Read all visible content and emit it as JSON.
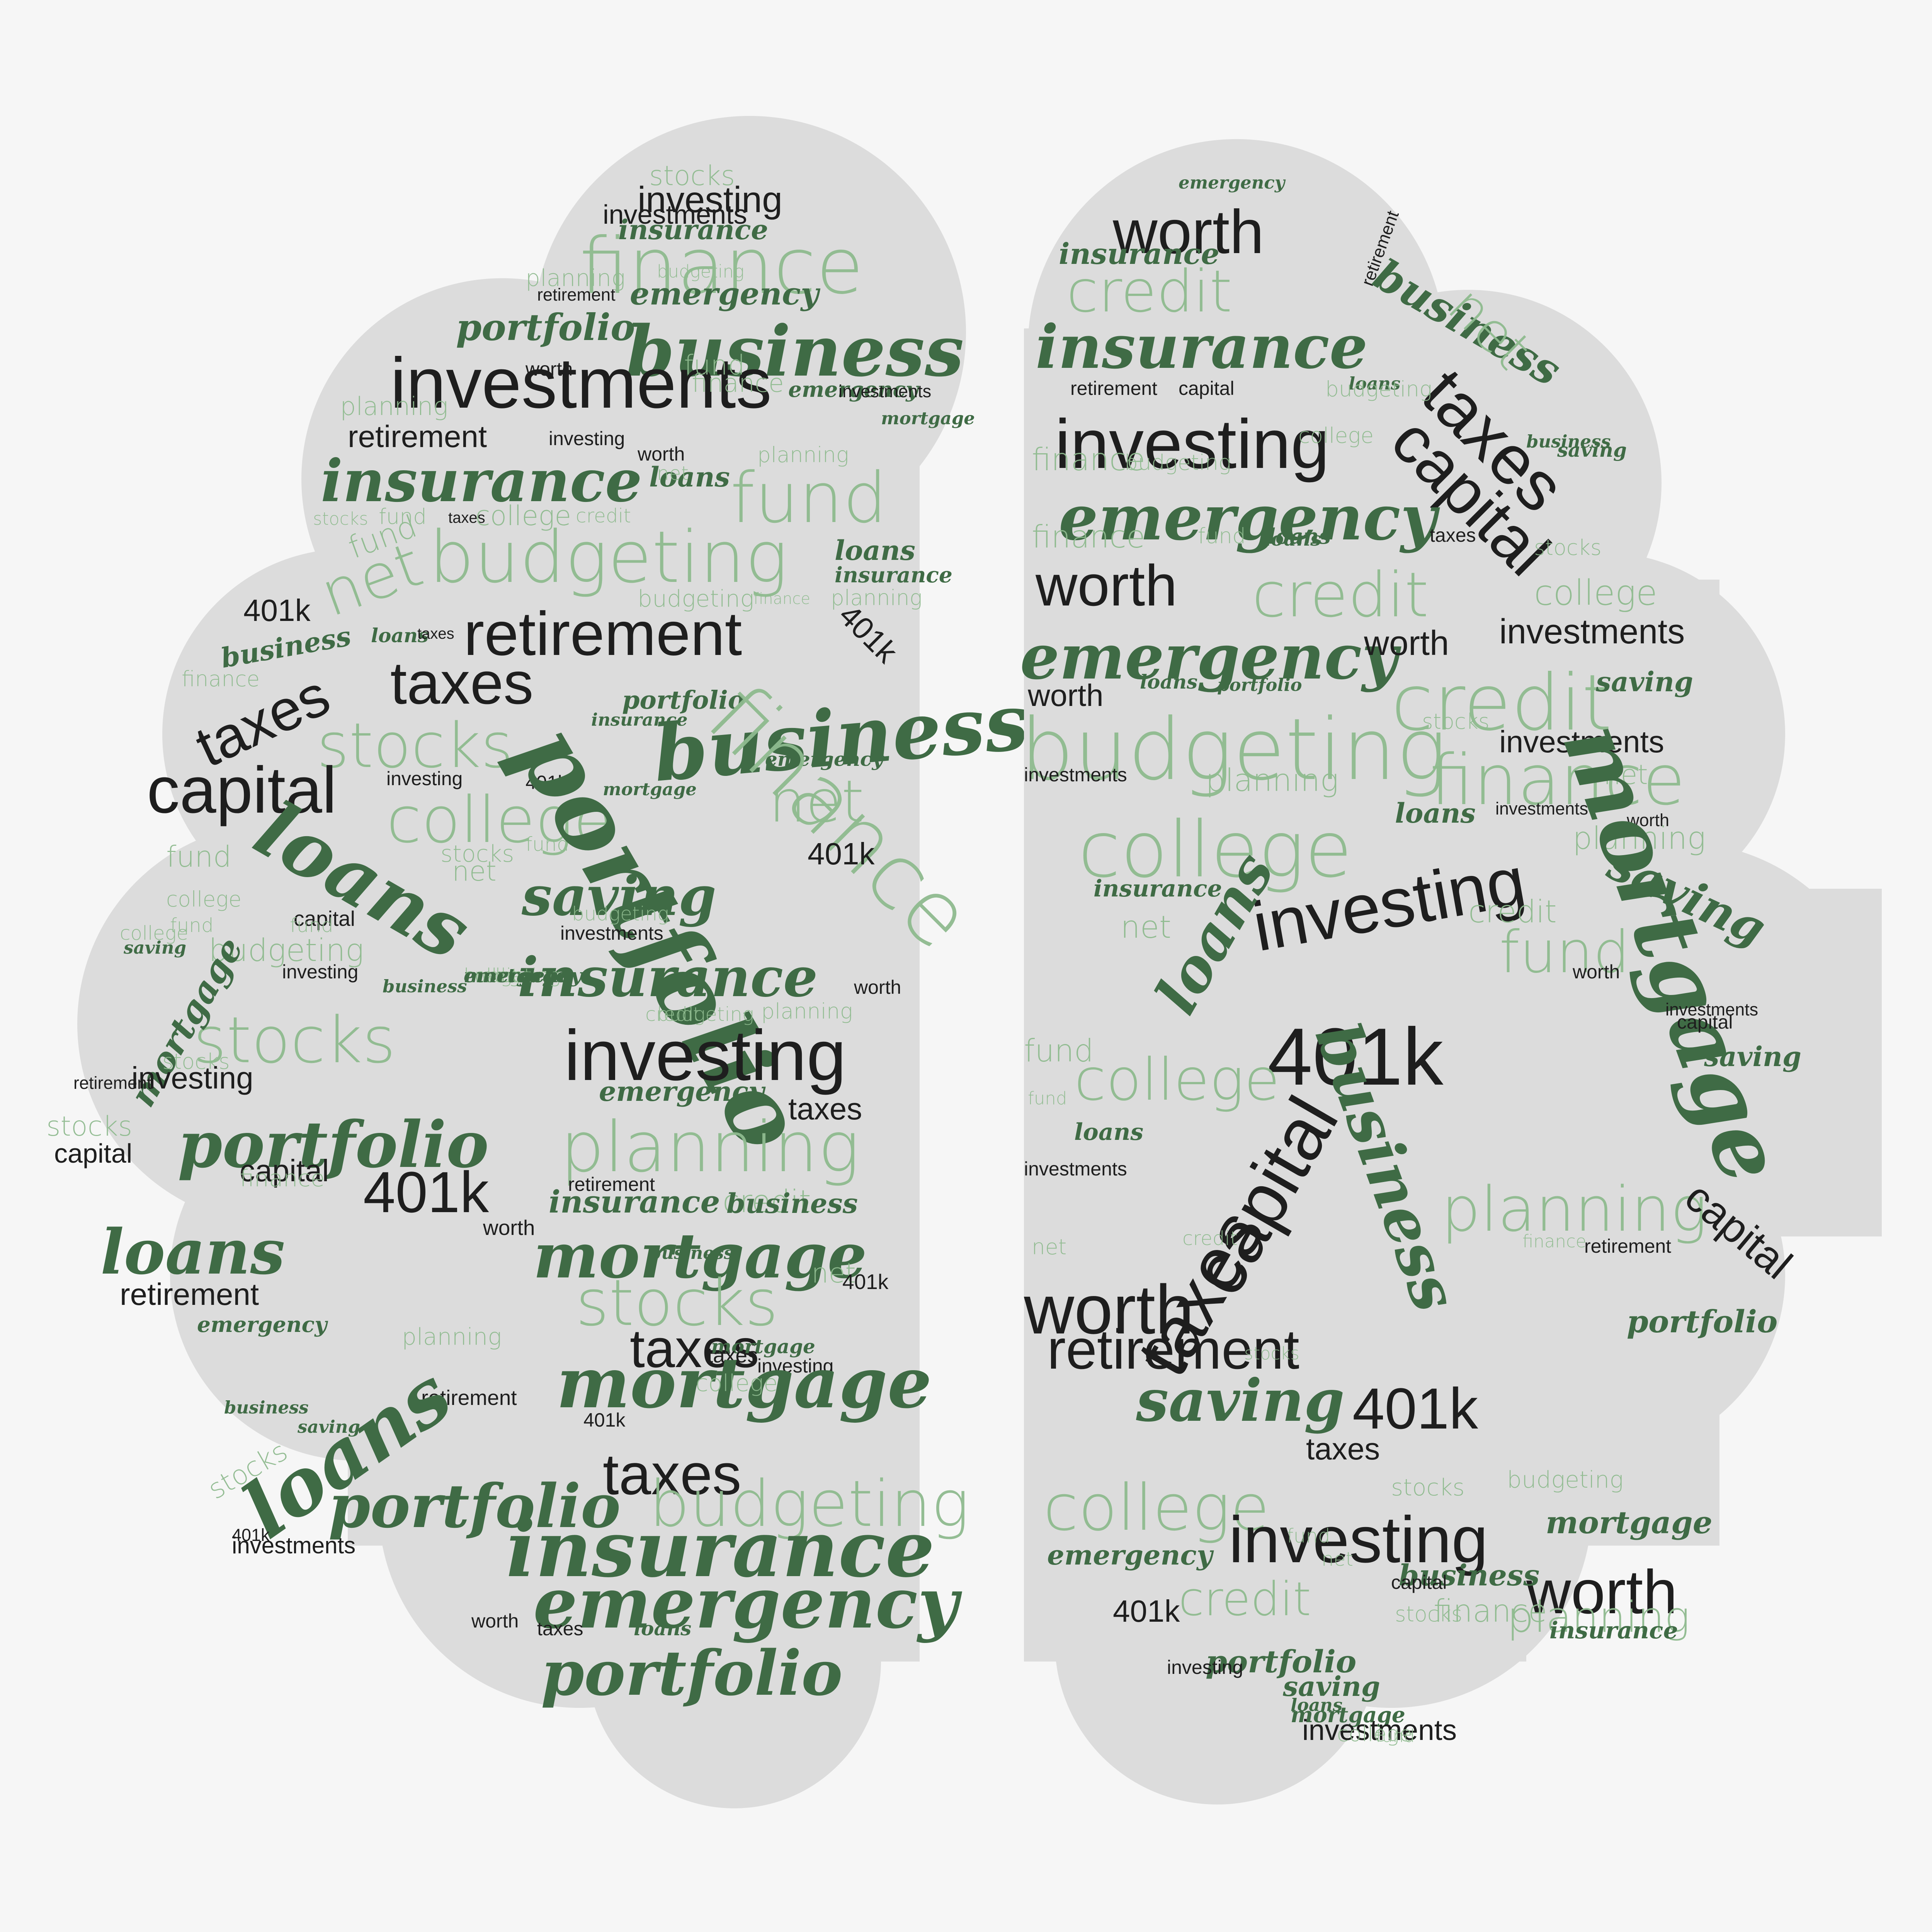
{
  "colors": {
    "background": "#f6f6f6",
    "lobe_fill": "#dcdcdc",
    "dark_text": "#1e1e1e",
    "light_green_text": "#8fbb8f",
    "dark_green_text": "#3f6b45"
  },
  "left_words": [
    {
      "t": "stocks",
      "s": "light"
    },
    {
      "t": "investing",
      "s": "dark"
    },
    {
      "t": "insurance",
      "s": "green"
    },
    {
      "t": "investments",
      "s": "dark"
    },
    {
      "t": "finance",
      "s": "light"
    },
    {
      "t": "planning",
      "s": "light"
    },
    {
      "t": "retirement",
      "s": "dark"
    },
    {
      "t": "emergency",
      "s": "green"
    },
    {
      "t": "budgeting",
      "s": "light"
    },
    {
      "t": "portfolio",
      "s": "green"
    },
    {
      "t": "business",
      "s": "green"
    },
    {
      "t": "investments",
      "s": "dark"
    },
    {
      "t": "fund",
      "s": "light"
    },
    {
      "t": "worth",
      "s": "dark"
    },
    {
      "t": "finance",
      "s": "light"
    },
    {
      "t": "emergency",
      "s": "green"
    },
    {
      "t": "planning",
      "s": "light"
    },
    {
      "t": "investments",
      "s": "dark"
    },
    {
      "t": "mortgage",
      "s": "green"
    },
    {
      "t": "retirement",
      "s": "dark"
    },
    {
      "t": "investing",
      "s": "dark"
    },
    {
      "t": "worth",
      "s": "dark"
    },
    {
      "t": "insurance",
      "s": "green"
    },
    {
      "t": "loans",
      "s": "green"
    },
    {
      "t": "net",
      "s": "light"
    },
    {
      "t": "planning",
      "s": "light"
    },
    {
      "t": "fund",
      "s": "light"
    },
    {
      "t": "stocks",
      "s": "light"
    },
    {
      "t": "fund",
      "s": "light"
    },
    {
      "t": "taxes",
      "s": "dark"
    },
    {
      "t": "college",
      "s": "light"
    },
    {
      "t": "credit",
      "s": "light"
    },
    {
      "t": "fund",
      "s": "light"
    },
    {
      "t": "budgeting",
      "s": "light"
    },
    {
      "t": "net",
      "s": "light"
    },
    {
      "t": "loans",
      "s": "green"
    },
    {
      "t": "insurance",
      "s": "green"
    },
    {
      "t": "planning",
      "s": "light"
    },
    {
      "t": "budgeting",
      "s": "light"
    },
    {
      "t": "finance",
      "s": "light"
    },
    {
      "t": "401k",
      "s": "dark"
    },
    {
      "t": "retirement",
      "s": "dark"
    },
    {
      "t": "business",
      "s": "green"
    },
    {
      "t": "loans",
      "s": "green"
    },
    {
      "t": "taxes",
      "s": "dark"
    },
    {
      "t": "taxes",
      "s": "dark"
    },
    {
      "t": "taxes",
      "s": "dark"
    },
    {
      "t": "portfolio",
      "s": "green"
    },
    {
      "t": "401k",
      "s": "dark"
    },
    {
      "t": "finance",
      "s": "light"
    },
    {
      "t": "insurance",
      "s": "green"
    },
    {
      "t": "stocks",
      "s": "light"
    },
    {
      "t": "capital",
      "s": "dark"
    },
    {
      "t": "business",
      "s": "green"
    },
    {
      "t": "emergency",
      "s": "green"
    },
    {
      "t": "investing",
      "s": "dark"
    },
    {
      "t": "401k",
      "s": "dark"
    },
    {
      "t": "mortgage",
      "s": "green"
    },
    {
      "t": "net",
      "s": "light"
    },
    {
      "t": "college",
      "s": "light"
    },
    {
      "t": "fund",
      "s": "light"
    },
    {
      "t": "stocks",
      "s": "light"
    },
    {
      "t": "fund",
      "s": "light"
    },
    {
      "t": "finance",
      "s": "light"
    },
    {
      "t": "401k",
      "s": "dark"
    },
    {
      "t": "loans",
      "s": "green"
    },
    {
      "t": "net",
      "s": "light"
    },
    {
      "t": "saving",
      "s": "green"
    },
    {
      "t": "portfolio",
      "s": "green"
    },
    {
      "t": "college",
      "s": "light"
    },
    {
      "t": "budgeting",
      "s": "light"
    },
    {
      "t": "capital",
      "s": "dark"
    },
    {
      "t": "fund",
      "s": "light"
    },
    {
      "t": "fund",
      "s": "light"
    },
    {
      "t": "college",
      "s": "light"
    },
    {
      "t": "investments",
      "s": "dark"
    },
    {
      "t": "insurance",
      "s": "green"
    },
    {
      "t": "saving",
      "s": "green"
    },
    {
      "t": "budgeting",
      "s": "light"
    },
    {
      "t": "investing",
      "s": "dark"
    },
    {
      "t": "business",
      "s": "green"
    },
    {
      "t": "worth",
      "s": "dark"
    },
    {
      "t": "stocks",
      "s": "light"
    },
    {
      "t": "credit",
      "s": "light"
    },
    {
      "t": "budgeting",
      "s": "light"
    },
    {
      "t": "planning",
      "s": "light"
    },
    {
      "t": "investing",
      "s": "dark"
    },
    {
      "t": "mortgage",
      "s": "green"
    },
    {
      "t": "stocks",
      "s": "light"
    },
    {
      "t": "retirement",
      "s": "dark"
    },
    {
      "t": "investing",
      "s": "dark"
    },
    {
      "t": "emergency",
      "s": "green"
    },
    {
      "t": "taxes",
      "s": "dark"
    },
    {
      "t": "stocks",
      "s": "light"
    },
    {
      "t": "portfolio",
      "s": "green"
    },
    {
      "t": "planning",
      "s": "light"
    },
    {
      "t": "capital",
      "s": "dark"
    },
    {
      "t": "capital",
      "s": "dark"
    },
    {
      "t": "finance",
      "s": "light"
    },
    {
      "t": "401k",
      "s": "dark"
    },
    {
      "t": "insurance",
      "s": "green"
    },
    {
      "t": "credit",
      "s": "light"
    },
    {
      "t": "retirement",
      "s": "dark"
    },
    {
      "t": "business",
      "s": "green"
    },
    {
      "t": "worth",
      "s": "dark"
    },
    {
      "t": "mortgage",
      "s": "green"
    },
    {
      "t": "loans",
      "s": "green"
    },
    {
      "t": "business",
      "s": "green"
    },
    {
      "t": "net",
      "s": "light"
    },
    {
      "t": "retirement",
      "s": "dark"
    },
    {
      "t": "stocks",
      "s": "light"
    },
    {
      "t": "taxes",
      "s": "dark"
    },
    {
      "t": "401k",
      "s": "dark"
    },
    {
      "t": "emergency",
      "s": "green"
    },
    {
      "t": "planning",
      "s": "light"
    },
    {
      "t": "mortgage",
      "s": "green"
    },
    {
      "t": "taxes",
      "s": "dark"
    },
    {
      "t": "investing",
      "s": "dark"
    },
    {
      "t": "mortgage",
      "s": "green"
    },
    {
      "t": "college",
      "s": "light"
    },
    {
      "t": "retirement",
      "s": "dark"
    },
    {
      "t": "business",
      "s": "green"
    },
    {
      "t": "saving",
      "s": "green"
    },
    {
      "t": "401k",
      "s": "dark"
    },
    {
      "t": "loans",
      "s": "green"
    },
    {
      "t": "taxes",
      "s": "dark"
    },
    {
      "t": "stocks",
      "s": "light"
    },
    {
      "t": "portfolio",
      "s": "green"
    },
    {
      "t": "budgeting",
      "s": "light"
    },
    {
      "t": "401k",
      "s": "dark"
    },
    {
      "t": "insurance",
      "s": "green"
    },
    {
      "t": "investments",
      "s": "dark"
    },
    {
      "t": "emergency",
      "s": "green"
    },
    {
      "t": "worth",
      "s": "dark"
    },
    {
      "t": "taxes",
      "s": "dark"
    },
    {
      "t": "loans",
      "s": "green"
    },
    {
      "t": "portfolio",
      "s": "green"
    },
    {
      "t": "college",
      "s": "light"
    },
    {
      "t": "emergency",
      "s": "green"
    },
    {
      "t": "budgeting",
      "s": "light"
    },
    {
      "t": "mortgage",
      "s": "green"
    }
  ],
  "right_words": [
    {
      "t": "emergency",
      "s": "green"
    },
    {
      "t": "worth",
      "s": "dark"
    },
    {
      "t": "insurance",
      "s": "green"
    },
    {
      "t": "credit",
      "s": "light"
    },
    {
      "t": "retirement",
      "s": "dark"
    },
    {
      "t": "business",
      "s": "green"
    },
    {
      "t": "insurance",
      "s": "green"
    },
    {
      "t": "net",
      "s": "light"
    },
    {
      "t": "taxes",
      "s": "dark"
    },
    {
      "t": "investing",
      "s": "dark"
    },
    {
      "t": "capital",
      "s": "dark"
    },
    {
      "t": "retirement",
      "s": "dark"
    },
    {
      "t": "capital",
      "s": "dark"
    },
    {
      "t": "loans",
      "s": "green"
    },
    {
      "t": "budgeting",
      "s": "light"
    },
    {
      "t": "finance",
      "s": "light"
    },
    {
      "t": "emergency",
      "s": "green"
    },
    {
      "t": "budgeting",
      "s": "light"
    },
    {
      "t": "college",
      "s": "light"
    },
    {
      "t": "loans",
      "s": "green"
    },
    {
      "t": "business",
      "s": "green"
    },
    {
      "t": "saving",
      "s": "green"
    },
    {
      "t": "finance",
      "s": "light"
    },
    {
      "t": "fund",
      "s": "light"
    },
    {
      "t": "loans",
      "s": "green"
    },
    {
      "t": "taxes",
      "s": "dark"
    },
    {
      "t": "stocks",
      "s": "light"
    },
    {
      "t": "worth",
      "s": "dark"
    },
    {
      "t": "credit",
      "s": "light"
    },
    {
      "t": "college",
      "s": "light"
    },
    {
      "t": "emergency",
      "s": "green"
    },
    {
      "t": "worth",
      "s": "dark"
    },
    {
      "t": "investments",
      "s": "dark"
    },
    {
      "t": "credit",
      "s": "light"
    },
    {
      "t": "saving",
      "s": "green"
    },
    {
      "t": "portfolio",
      "s": "green"
    },
    {
      "t": "loans",
      "s": "green"
    },
    {
      "t": "worth",
      "s": "dark"
    },
    {
      "t": "budgeting",
      "s": "light"
    },
    {
      "t": "stocks",
      "s": "light"
    },
    {
      "t": "investments",
      "s": "dark"
    },
    {
      "t": "finance",
      "s": "light"
    },
    {
      "t": "net",
      "s": "light"
    },
    {
      "t": "investments",
      "s": "dark"
    },
    {
      "t": "planning",
      "s": "light"
    },
    {
      "t": "college",
      "s": "light"
    },
    {
      "t": "loans",
      "s": "green"
    },
    {
      "t": "investments",
      "s": "dark"
    },
    {
      "t": "worth",
      "s": "dark"
    },
    {
      "t": "planning",
      "s": "light"
    },
    {
      "t": "insurance",
      "s": "green"
    },
    {
      "t": "investing",
      "s": "dark"
    },
    {
      "t": "saving",
      "s": "green"
    },
    {
      "t": "credit",
      "s": "light"
    },
    {
      "t": "net",
      "s": "light"
    },
    {
      "t": "loans",
      "s": "green"
    },
    {
      "t": "mortgage",
      "s": "green"
    },
    {
      "t": "fund",
      "s": "light"
    },
    {
      "t": "worth",
      "s": "dark"
    },
    {
      "t": "401k",
      "s": "dark"
    },
    {
      "t": "investments",
      "s": "dark"
    },
    {
      "t": "capital",
      "s": "dark"
    },
    {
      "t": "saving",
      "s": "green"
    },
    {
      "t": "fund",
      "s": "light"
    },
    {
      "t": "college",
      "s": "light"
    },
    {
      "t": "loans",
      "s": "green"
    },
    {
      "t": "capital",
      "s": "dark"
    },
    {
      "t": "fund",
      "s": "light"
    },
    {
      "t": "business",
      "s": "green"
    },
    {
      "t": "investments",
      "s": "dark"
    },
    {
      "t": "taxes",
      "s": "dark"
    },
    {
      "t": "net",
      "s": "light"
    },
    {
      "t": "planning",
      "s": "light"
    },
    {
      "t": "capital",
      "s": "dark"
    },
    {
      "t": "retirement",
      "s": "dark"
    },
    {
      "t": "portfolio",
      "s": "green"
    },
    {
      "t": "credit",
      "s": "light"
    },
    {
      "t": "finance",
      "s": "light"
    },
    {
      "t": "worth",
      "s": "dark"
    },
    {
      "t": "retirement",
      "s": "dark"
    },
    {
      "t": "stocks",
      "s": "light"
    },
    {
      "t": "401k",
      "s": "dark"
    },
    {
      "t": "saving",
      "s": "green"
    },
    {
      "t": "taxes",
      "s": "dark"
    },
    {
      "t": "college",
      "s": "light"
    },
    {
      "t": "stocks",
      "s": "light"
    },
    {
      "t": "budgeting",
      "s": "light"
    },
    {
      "t": "investing",
      "s": "dark"
    },
    {
      "t": "mortgage",
      "s": "green"
    },
    {
      "t": "worth",
      "s": "dark"
    },
    {
      "t": "emergency",
      "s": "green"
    },
    {
      "t": "fund",
      "s": "light"
    },
    {
      "t": "net",
      "s": "light"
    },
    {
      "t": "credit",
      "s": "light"
    },
    {
      "t": "401k",
      "s": "dark"
    },
    {
      "t": "business",
      "s": "green"
    },
    {
      "t": "capital",
      "s": "dark"
    },
    {
      "t": "planning",
      "s": "light"
    },
    {
      "t": "finance",
      "s": "light"
    },
    {
      "t": "insurance",
      "s": "green"
    },
    {
      "t": "portfolio",
      "s": "green"
    },
    {
      "t": "stocks",
      "s": "light"
    },
    {
      "t": "investing",
      "s": "dark"
    },
    {
      "t": "saving",
      "s": "green"
    },
    {
      "t": "loans",
      "s": "green"
    },
    {
      "t": "mortgage",
      "s": "green"
    },
    {
      "t": "investments",
      "s": "dark"
    },
    {
      "t": "college",
      "s": "light"
    },
    {
      "t": "fund",
      "s": "light"
    },
    {
      "t": "credit",
      "s": "light"
    },
    {
      "t": "emergency",
      "s": "green"
    }
  ]
}
